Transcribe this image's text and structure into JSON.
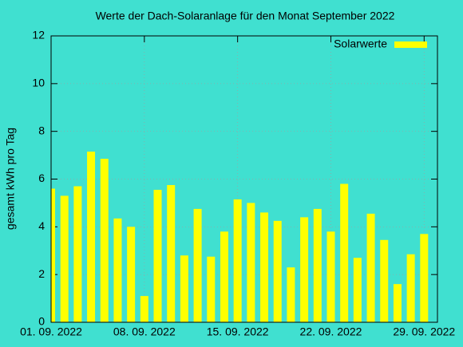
{
  "chart_data": {
    "type": "bar",
    "title": "Werte der Dach-Solaranlage für den Monat September 2022",
    "y_label": "gesamt kWh pro Tag",
    "x": [
      "2022-09-01",
      "2022-09-02",
      "2022-09-03",
      "2022-09-04",
      "2022-09-05",
      "2022-09-06",
      "2022-09-07",
      "2022-09-08",
      "2022-09-09",
      "2022-09-10",
      "2022-09-11",
      "2022-09-12",
      "2022-09-13",
      "2022-09-14",
      "2022-09-15",
      "2022-09-16",
      "2022-09-17",
      "2022-09-18",
      "2022-09-19",
      "2022-09-20",
      "2022-09-21",
      "2022-09-22",
      "2022-09-23",
      "2022-09-24",
      "2022-09-25",
      "2022-09-26",
      "2022-09-27",
      "2022-09-28",
      "2022-09-29"
    ],
    "series": [
      {
        "name": "Solarwerte",
        "color": "#ffff00",
        "values": [
          5.6,
          5.3,
          5.7,
          7.15,
          6.85,
          4.35,
          4.0,
          1.1,
          5.55,
          5.75,
          2.8,
          4.75,
          2.75,
          3.8,
          5.15,
          5.0,
          4.6,
          4.25,
          2.3,
          4.4,
          4.75,
          3.8,
          5.8,
          2.7,
          4.55,
          3.45,
          1.6,
          2.85,
          3.7
        ]
      }
    ],
    "xlim": [
      "2022-09-01",
      "2022-09-30"
    ],
    "xticks": [
      {
        "value": "2022-09-01",
        "label": "01. 09. 2022"
      },
      {
        "value": "2022-09-08",
        "label": "08. 09. 2022"
      },
      {
        "value": "2022-09-15",
        "label": "15. 09. 2022"
      },
      {
        "value": "2022-09-22",
        "label": "22. 09. 2022"
      },
      {
        "value": "2022-09-29",
        "label": "29. 09. 2022"
      }
    ],
    "ylim": [
      0,
      12
    ],
    "yticks": [
      0,
      2,
      4,
      6,
      8,
      10,
      12
    ],
    "grid": true,
    "legend": "top-right",
    "background": "#40e0d0"
  }
}
